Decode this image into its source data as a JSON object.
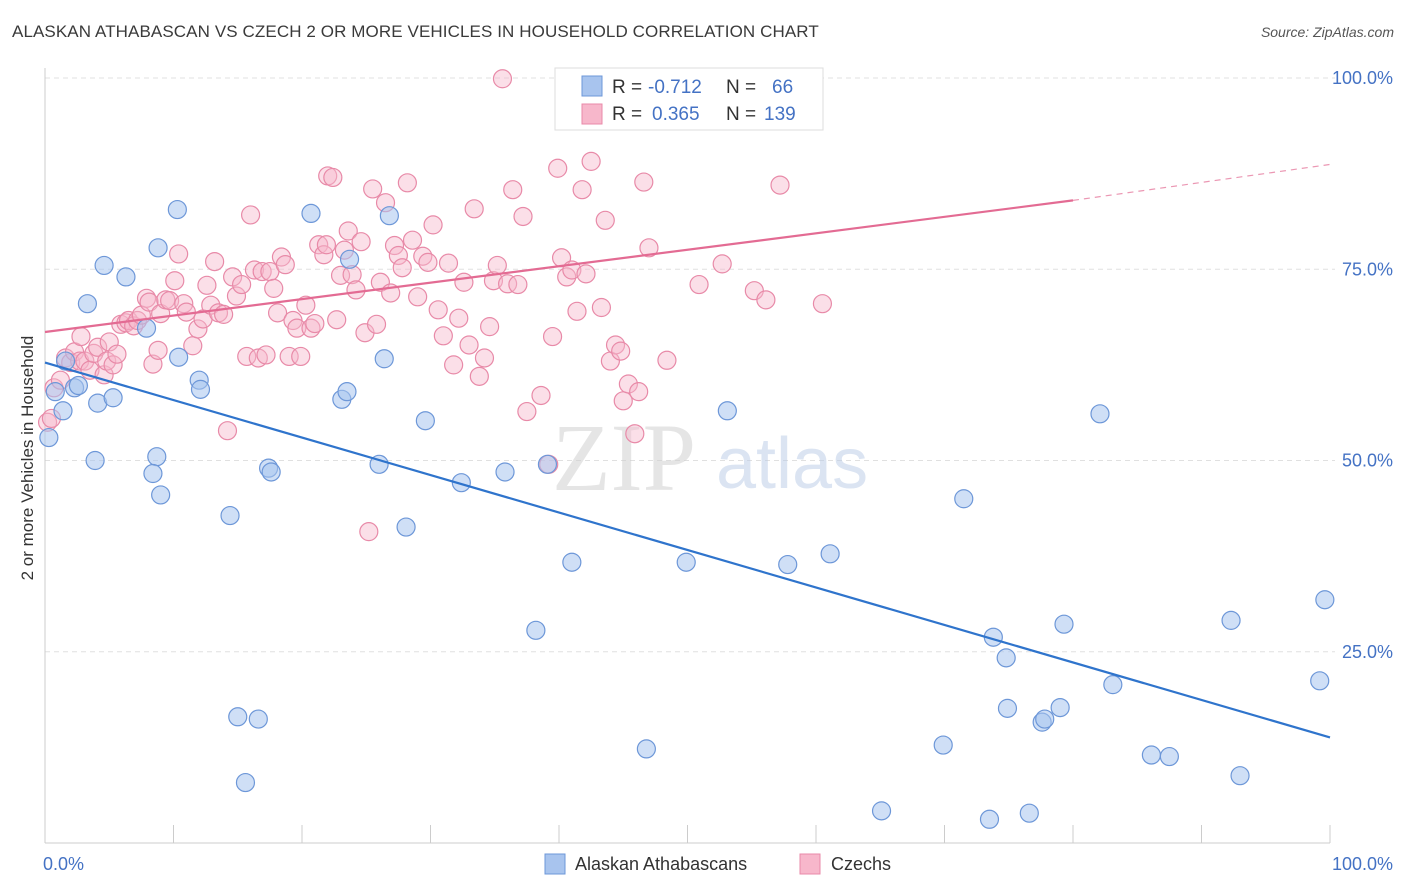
{
  "header": {
    "title": "ALASKAN ATHABASCAN VS CZECH 2 OR MORE VEHICLES IN HOUSEHOLD CORRELATION CHART",
    "source": "Source: ZipAtlas.com"
  },
  "watermark": {
    "part1": "ZIP",
    "part2": "atlas"
  },
  "legend_box": {
    "rows": [
      {
        "r_label": "R =",
        "r_value": "-0.712",
        "n_label": "N =",
        "n_value": "66",
        "color": "#a8c4ee",
        "stroke": "#6d97d8"
      },
      {
        "r_label": "R =",
        "r_value": "0.365",
        "n_label": "N =",
        "n_value": "139",
        "color": "#f7b7cb",
        "stroke": "#e88aa8"
      }
    ]
  },
  "bottom_legend": [
    {
      "label": "Alaskan Athabascans",
      "color": "#a8c4ee",
      "stroke": "#6d97d8"
    },
    {
      "label": "Czechs",
      "color": "#f7b7cb",
      "stroke": "#e88aa8"
    }
  ],
  "chart_data": {
    "type": "scatter",
    "title": "ALASKAN ATHABASCAN VS CZECH 2 OR MORE VEHICLES IN HOUSEHOLD CORRELATION CHART",
    "ylabel": "2 or more Vehicles in Household",
    "xlabel": "",
    "x_tick_labels": [
      "0.0%",
      "100.0%"
    ],
    "y_tick_labels": [
      "100.0%",
      "75.0%",
      "50.0%",
      "25.0%"
    ],
    "y_ticks": [
      100,
      75,
      50,
      25
    ],
    "xlim": [
      0,
      100
    ],
    "ylim": [
      0,
      100
    ],
    "grid": true,
    "legend_placement": "bottom",
    "colors": {
      "blue_fill": "#a8c4ee",
      "blue_stroke": "#6d97d8",
      "blue_line": "#2f74cc",
      "pink_fill": "#f7b7cb",
      "pink_stroke": "#e88aa8",
      "pink_line": "#e36b93"
    },
    "series": [
      {
        "name": "Alaskan Athabascans",
        "color": "blue",
        "r": -0.712,
        "n": 66,
        "trend": {
          "x": [
            0,
            100
          ],
          "y": [
            62.8,
            13.8
          ]
        },
        "points": [
          [
            0.3,
            53.0
          ],
          [
            0.8,
            59.0
          ],
          [
            1.4,
            56.5
          ],
          [
            1.6,
            63.0
          ],
          [
            2.3,
            59.5
          ],
          [
            2.6,
            59.8
          ],
          [
            3.3,
            70.5
          ],
          [
            4.1,
            57.5
          ],
          [
            4.6,
            75.5
          ],
          [
            5.3,
            58.2
          ],
          [
            3.9,
            50.0
          ],
          [
            6.3,
            74.0
          ],
          [
            7.9,
            67.3
          ],
          [
            8.7,
            50.5
          ],
          [
            8.4,
            48.3
          ],
          [
            8.8,
            77.8
          ],
          [
            9.0,
            45.5
          ],
          [
            10.4,
            63.5
          ],
          [
            10.3,
            82.8
          ],
          [
            12.0,
            60.5
          ],
          [
            12.1,
            59.3
          ],
          [
            14.4,
            42.8
          ],
          [
            15.0,
            16.5
          ],
          [
            15.6,
            7.9
          ],
          [
            16.6,
            16.2
          ],
          [
            17.4,
            49.0
          ],
          [
            17.6,
            48.5
          ],
          [
            20.7,
            82.3
          ],
          [
            23.1,
            58.0
          ],
          [
            23.5,
            59.0
          ],
          [
            23.7,
            76.3
          ],
          [
            26.0,
            49.5
          ],
          [
            26.4,
            63.3
          ],
          [
            26.8,
            82.0
          ],
          [
            28.1,
            41.3
          ],
          [
            29.6,
            55.2
          ],
          [
            32.4,
            47.1
          ],
          [
            35.8,
            48.5
          ],
          [
            38.2,
            27.8
          ],
          [
            39.1,
            49.5
          ],
          [
            41.0,
            36.7
          ],
          [
            46.8,
            12.3
          ],
          [
            49.9,
            36.7
          ],
          [
            53.1,
            56.5
          ],
          [
            57.8,
            36.4
          ],
          [
            61.1,
            37.8
          ],
          [
            65.1,
            4.2
          ],
          [
            69.9,
            12.8
          ],
          [
            71.5,
            45.0
          ],
          [
            73.5,
            3.1
          ],
          [
            73.8,
            26.9
          ],
          [
            74.8,
            24.2
          ],
          [
            74.9,
            17.6
          ],
          [
            76.6,
            3.9
          ],
          [
            77.6,
            15.8
          ],
          [
            77.8,
            16.2
          ],
          [
            79.0,
            17.7
          ],
          [
            79.3,
            28.6
          ],
          [
            82.1,
            56.1
          ],
          [
            83.1,
            20.7
          ],
          [
            86.1,
            11.5
          ],
          [
            87.5,
            11.3
          ],
          [
            92.3,
            29.1
          ],
          [
            93.0,
            8.8
          ],
          [
            99.2,
            21.2
          ],
          [
            99.6,
            31.8
          ]
        ]
      },
      {
        "name": "Czechs",
        "color": "pink",
        "r": 0.365,
        "n": 139,
        "trend": {
          "x": [
            0,
            80
          ],
          "y": [
            66.8,
            84.0
          ],
          "dashed_to": {
            "x": 100,
            "y": 88.7
          }
        },
        "points": [
          [
            0.2,
            55.0
          ],
          [
            0.5,
            55.5
          ],
          [
            0.7,
            59.5
          ],
          [
            1.2,
            60.5
          ],
          [
            1.6,
            63.4
          ],
          [
            2.0,
            62.8
          ],
          [
            2.3,
            64.2
          ],
          [
            2.7,
            63.0
          ],
          [
            2.8,
            66.2
          ],
          [
            3.1,
            63.0
          ],
          [
            3.5,
            61.8
          ],
          [
            3.8,
            64.0
          ],
          [
            4.1,
            64.8
          ],
          [
            4.6,
            61.2
          ],
          [
            4.8,
            63.0
          ],
          [
            5.0,
            65.5
          ],
          [
            5.3,
            62.5
          ],
          [
            5.6,
            63.9
          ],
          [
            5.9,
            67.8
          ],
          [
            6.3,
            68.0
          ],
          [
            6.5,
            68.3
          ],
          [
            6.9,
            67.6
          ],
          [
            7.2,
            68.3
          ],
          [
            7.5,
            69.0
          ],
          [
            7.9,
            71.2
          ],
          [
            8.1,
            70.7
          ],
          [
            8.4,
            62.6
          ],
          [
            8.8,
            64.4
          ],
          [
            9.0,
            69.2
          ],
          [
            9.4,
            71.0
          ],
          [
            9.7,
            70.9
          ],
          [
            10.1,
            73.5
          ],
          [
            10.4,
            77.0
          ],
          [
            10.8,
            70.5
          ],
          [
            11.0,
            69.4
          ],
          [
            11.5,
            65.0
          ],
          [
            11.9,
            67.2
          ],
          [
            12.3,
            68.5
          ],
          [
            12.6,
            72.9
          ],
          [
            12.9,
            70.3
          ],
          [
            13.2,
            76.0
          ],
          [
            13.5,
            69.3
          ],
          [
            13.9,
            69.1
          ],
          [
            14.2,
            53.9
          ],
          [
            14.6,
            74.0
          ],
          [
            14.9,
            71.5
          ],
          [
            15.3,
            73.0
          ],
          [
            15.7,
            63.6
          ],
          [
            16.0,
            82.1
          ],
          [
            16.3,
            74.9
          ],
          [
            16.6,
            63.4
          ],
          [
            16.9,
            74.7
          ],
          [
            17.2,
            63.8
          ],
          [
            17.5,
            74.7
          ],
          [
            17.8,
            72.5
          ],
          [
            18.1,
            69.3
          ],
          [
            18.4,
            76.6
          ],
          [
            18.7,
            75.6
          ],
          [
            19.0,
            63.6
          ],
          [
            19.3,
            68.3
          ],
          [
            19.6,
            67.3
          ],
          [
            19.9,
            63.6
          ],
          [
            20.3,
            70.3
          ],
          [
            20.7,
            67.3
          ],
          [
            21.0,
            67.9
          ],
          [
            21.3,
            78.2
          ],
          [
            21.7,
            76.9
          ],
          [
            21.9,
            78.2
          ],
          [
            22.0,
            87.2
          ],
          [
            22.4,
            87.0
          ],
          [
            22.7,
            68.4
          ],
          [
            23.0,
            74.2
          ],
          [
            23.3,
            77.5
          ],
          [
            23.6,
            80.0
          ],
          [
            23.9,
            74.3
          ],
          [
            24.2,
            72.3
          ],
          [
            24.6,
            78.6
          ],
          [
            24.9,
            66.7
          ],
          [
            25.2,
            40.7
          ],
          [
            25.5,
            85.5
          ],
          [
            25.8,
            67.8
          ],
          [
            26.1,
            73.3
          ],
          [
            26.5,
            83.7
          ],
          [
            26.9,
            71.9
          ],
          [
            27.2,
            78.1
          ],
          [
            27.5,
            76.8
          ],
          [
            27.8,
            75.2
          ],
          [
            28.2,
            86.3
          ],
          [
            28.6,
            78.8
          ],
          [
            29.0,
            71.4
          ],
          [
            29.4,
            76.7
          ],
          [
            29.8,
            75.9
          ],
          [
            30.2,
            80.8
          ],
          [
            30.6,
            69.7
          ],
          [
            31.0,
            66.3
          ],
          [
            31.4,
            75.8
          ],
          [
            31.8,
            62.5
          ],
          [
            32.2,
            68.6
          ],
          [
            32.6,
            73.3
          ],
          [
            33.0,
            65.1
          ],
          [
            33.4,
            82.9
          ],
          [
            33.8,
            61.0
          ],
          [
            34.2,
            63.4
          ],
          [
            34.6,
            67.5
          ],
          [
            34.9,
            73.5
          ],
          [
            35.2,
            75.5
          ],
          [
            35.6,
            99.9
          ],
          [
            36.0,
            73.1
          ],
          [
            36.4,
            85.4
          ],
          [
            36.8,
            73.0
          ],
          [
            37.2,
            81.9
          ],
          [
            37.5,
            56.4
          ],
          [
            38.6,
            58.5
          ],
          [
            39.2,
            49.5
          ],
          [
            39.5,
            66.2
          ],
          [
            39.9,
            88.2
          ],
          [
            40.2,
            76.5
          ],
          [
            40.6,
            74.0
          ],
          [
            41.0,
            74.9
          ],
          [
            41.4,
            69.5
          ],
          [
            41.8,
            85.4
          ],
          [
            42.1,
            74.4
          ],
          [
            42.5,
            89.1
          ],
          [
            42.9,
            99.9
          ],
          [
            43.3,
            70.0
          ],
          [
            43.6,
            81.4
          ],
          [
            44.0,
            63.0
          ],
          [
            44.4,
            65.1
          ],
          [
            44.8,
            64.3
          ],
          [
            45.0,
            57.8
          ],
          [
            45.4,
            60.0
          ],
          [
            45.9,
            53.5
          ],
          [
            46.2,
            59.0
          ],
          [
            46.6,
            86.4
          ],
          [
            47.0,
            77.8
          ],
          [
            48.4,
            63.1
          ],
          [
            50.9,
            73.0
          ],
          [
            52.7,
            75.7
          ],
          [
            55.2,
            72.2
          ],
          [
            56.1,
            71.0
          ],
          [
            57.2,
            86.0
          ],
          [
            58.3,
            99.9
          ],
          [
            60.5,
            70.5
          ]
        ]
      }
    ]
  }
}
